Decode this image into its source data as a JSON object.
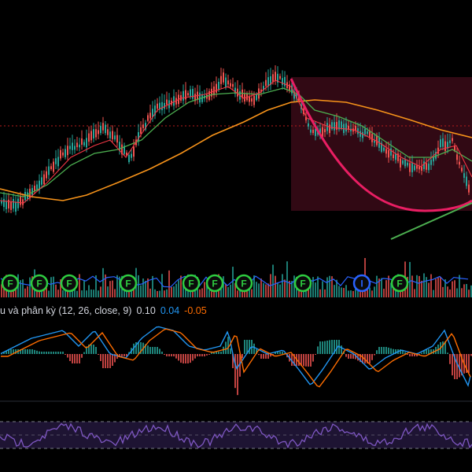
{
  "chart_data": [
    {
      "type": "candlestick",
      "panel": "price",
      "title": "",
      "notes": "Price pane with three moving averages, red cup-shaped arc inside shaded rectangle, green trend line.",
      "colors": {
        "up": "#26a69a",
        "down": "#ef5350",
        "ma_fast": "#f23645",
        "ma_mid": "#4caf50",
        "ma_slow": "#f7931a",
        "cup": "#e91e63",
        "trendline": "#4caf50",
        "zone": "#5a1024"
      },
      "markers": [
        {
          "label": "F",
          "color": "#2ecc40"
        },
        {
          "label": "F",
          "color": "#2ecc40"
        },
        {
          "label": "F",
          "color": "#2ecc40"
        },
        {
          "label": "F",
          "color": "#2ecc40"
        },
        {
          "label": "F",
          "color": "#2ecc40"
        },
        {
          "label": "F",
          "color": "#2ecc40"
        },
        {
          "label": "F",
          "color": "#2ecc40"
        },
        {
          "label": "F",
          "color": "#2ecc40"
        },
        {
          "label": "I",
          "color": "#2962ff"
        },
        {
          "label": "F",
          "color": "#2ecc40"
        }
      ]
    },
    {
      "type": "bar",
      "panel": "volume"
    },
    {
      "type": "line",
      "panel": "macd",
      "label_prefix": "u và phân kỳ (12, 26, close, 9)",
      "values_text": [
        "0.10",
        "0.04",
        "-0.05"
      ],
      "value_colors": [
        "#d1d4dc",
        "#2196f3",
        "#ff6d00"
      ],
      "series": [
        {
          "color": "#2196f3"
        },
        {
          "color": "#ff6d00"
        }
      ]
    },
    {
      "type": "line",
      "panel": "rsi",
      "series": [
        {
          "color": "#7e57c2"
        }
      ],
      "bands": "dashed upper, middle and lower levels"
    }
  ]
}
